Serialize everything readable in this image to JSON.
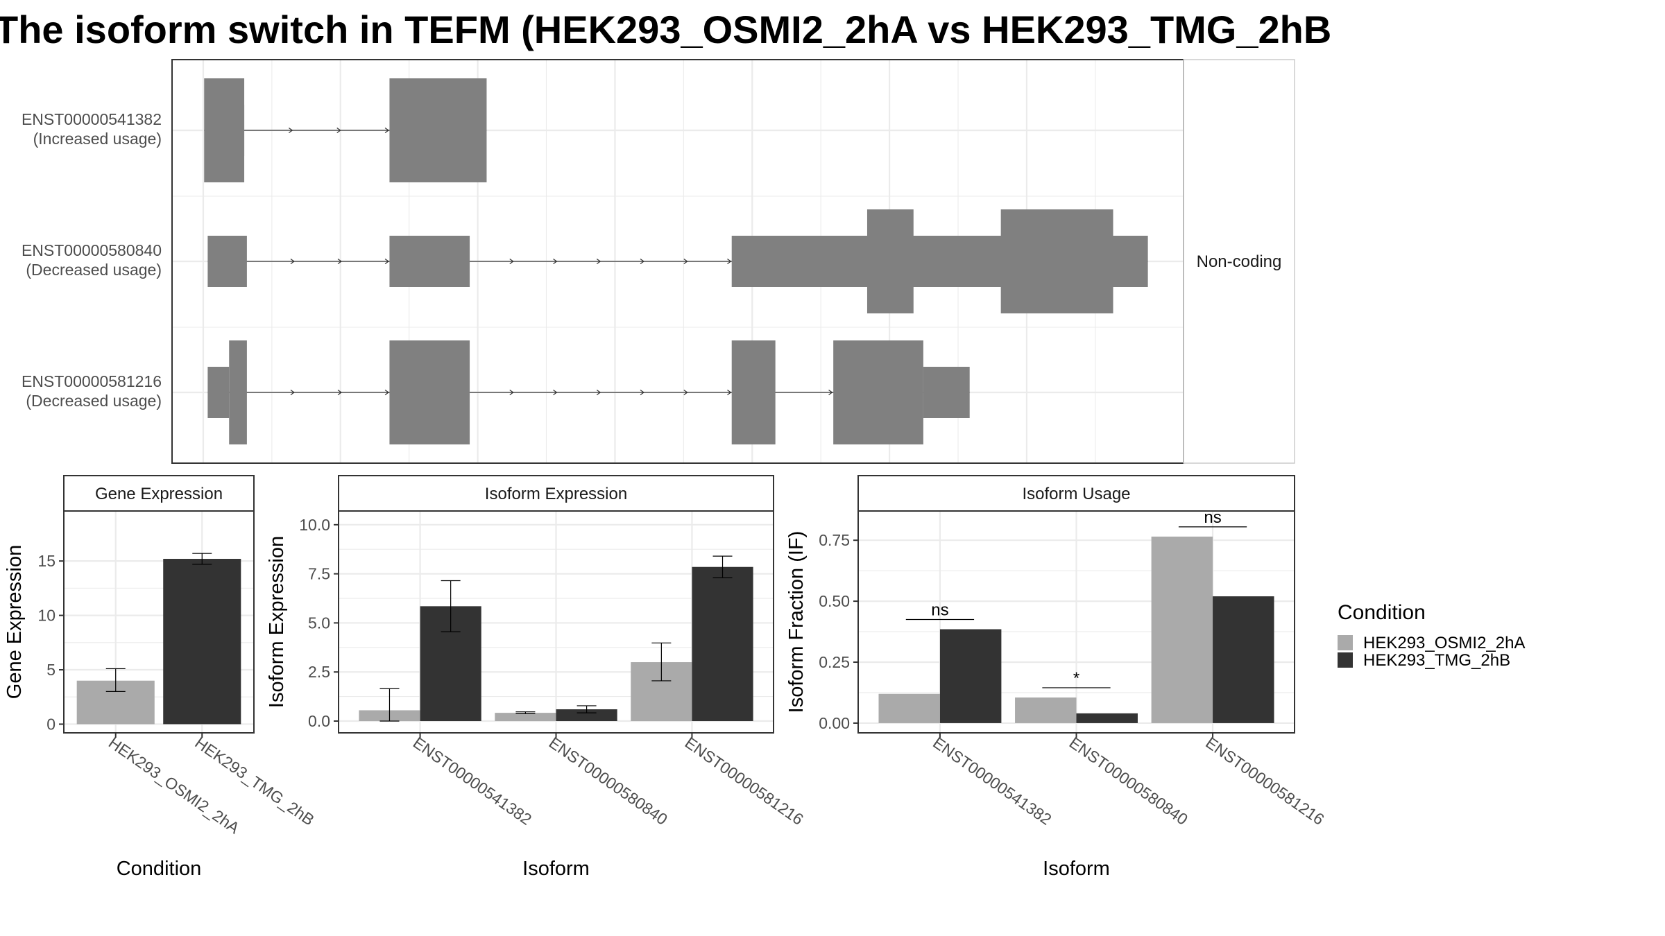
{
  "title": "The isoform switch in TEFM (HEK293_OSMI2_2hA vs HEK293_TMG_2hB",
  "colors": {
    "cond_a": "#aaaaaa",
    "cond_b": "#333333",
    "exon": "#808080",
    "grid": "#ebebeb",
    "intron": "#333333"
  },
  "transcripts": {
    "strip_label": "Non-coding",
    "rows": [
      {
        "id": "ENST00000541382",
        "usage": "(Increased usage)",
        "cds": [
          [
            1,
            46
          ],
          [
            209,
            318
          ]
        ],
        "utr": [
          [
            5,
            46
          ]
        ]
      },
      {
        "id": "ENST00000580840",
        "usage": "(Decreased usage)",
        "cds": [
          [
            745,
            797
          ],
          [
            895,
            1021
          ]
        ],
        "utr": [
          [
            5,
            49
          ],
          [
            209,
            299
          ],
          [
            593,
            1060
          ]
        ]
      },
      {
        "id": "ENST00000581216",
        "usage": "(Decreased usage)",
        "cds": [
          [
            29,
            49
          ],
          [
            209,
            299
          ],
          [
            593,
            642
          ],
          [
            707,
            808
          ]
        ],
        "utr": [
          [
            5,
            29
          ],
          [
            808,
            860
          ]
        ]
      }
    ]
  },
  "chart_data": [
    {
      "type": "bar",
      "title": "Gene Expression",
      "xlabel": "Condition",
      "ylabel": "Gene Expression",
      "ylim": [
        -0.8,
        19.6
      ],
      "yticks": [
        0,
        5,
        10,
        15
      ],
      "ytick_labels": [
        "0",
        "5",
        "10",
        "15"
      ],
      "categories": [
        "HEK293_OSMI2_2hA",
        "HEK293_TMG_2hB"
      ],
      "values": [
        4.0,
        15.2
      ],
      "error": [
        [
          3.0,
          5.1
        ],
        [
          14.7,
          15.7
        ]
      ],
      "colors": [
        "#aaaaaa",
        "#333333"
      ]
    },
    {
      "type": "bar",
      "title": "Isoform Expression",
      "xlabel": "Isoform",
      "ylabel": "Isoform Expression",
      "ylim": [
        -0.6,
        10.7
      ],
      "yticks": [
        0,
        2.5,
        5,
        7.5,
        10
      ],
      "ytick_labels": [
        "0.0",
        "2.5",
        "5.0",
        "7.5",
        "10.0"
      ],
      "categories": [
        "ENST00000541382",
        "ENST00000580840",
        "ENST00000581216"
      ],
      "series": [
        {
          "name": "HEK293_OSMI2_2hA",
          "values": [
            0.55,
            0.42,
            3.0
          ],
          "error": [
            [
              0.0,
              1.65
            ],
            [
              0.38,
              0.47
            ],
            [
              2.05,
              3.98
            ]
          ]
        },
        {
          "name": "HEK293_TMG_2hB",
          "values": [
            5.85,
            0.6,
            7.85
          ],
          "error": [
            [
              4.55,
              7.15
            ],
            [
              0.42,
              0.78
            ],
            [
              7.3,
              8.4
            ]
          ]
        }
      ]
    },
    {
      "type": "bar",
      "title": "Isoform Usage",
      "xlabel": "Isoform",
      "ylabel": "Isoform Fraction (IF)",
      "ylim": [
        -0.04,
        0.87
      ],
      "yticks": [
        0,
        0.25,
        0.5,
        0.75
      ],
      "ytick_labels": [
        "0.00",
        "0.25",
        "0.50",
        "0.75"
      ],
      "categories": [
        "ENST00000541382",
        "ENST00000580840",
        "ENST00000581216"
      ],
      "series": [
        {
          "name": "HEK293_OSMI2_2hA",
          "values": [
            0.12,
            0.105,
            0.765
          ]
        },
        {
          "name": "HEK293_TMG_2hB",
          "values": [
            0.385,
            0.04,
            0.52
          ]
        }
      ],
      "annotations": [
        {
          "category": 0,
          "label": "ns",
          "y": 0.425
        },
        {
          "category": 1,
          "label": "*",
          "y": 0.145
        },
        {
          "category": 2,
          "label": "ns",
          "y": 0.805
        }
      ]
    }
  ],
  "legend": {
    "title": "Condition",
    "position": "right",
    "items": [
      {
        "label": "HEK293_OSMI2_2hA",
        "color": "#aaaaaa"
      },
      {
        "label": "HEK293_TMG_2hB",
        "color": "#333333"
      }
    ]
  }
}
